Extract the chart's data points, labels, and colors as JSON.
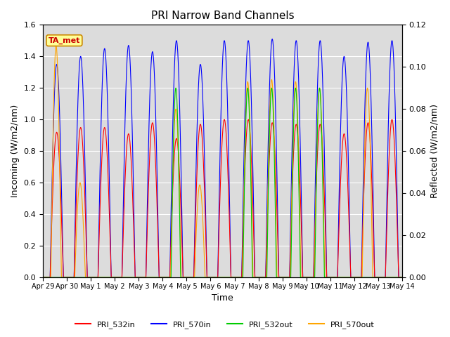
{
  "title": "PRI Narrow Band Channels",
  "xlabel": "Time",
  "ylabel_left": "Incoming (W/m2/nm)",
  "ylabel_right": "Reflected (W/m2/nm)",
  "ylim_left": [
    0,
    1.6
  ],
  "ylim_right": [
    0,
    0.12
  ],
  "annotation": "TA_met",
  "background_color": "#dcdcdc",
  "series": {
    "PRI_532in": {
      "color": "#ff0000"
    },
    "PRI_570in": {
      "color": "#0000ff"
    },
    "PRI_532out": {
      "color": "#00cc00"
    },
    "PRI_570out": {
      "color": "#ffa500"
    }
  },
  "xtick_labels": [
    "Apr 29",
    "Apr 30",
    "May 1",
    "May 2",
    "May 3",
    "May 4",
    "May 5",
    "May 6",
    "May 7",
    "May 8",
    "May 9",
    "May 10",
    "May 11",
    "May 12",
    "May 13",
    "May 14"
  ],
  "num_days": 15,
  "in532_peaks": [
    0.92,
    0.95,
    0.95,
    0.91,
    0.98,
    0.88,
    0.97,
    1.0,
    1.0,
    0.98,
    0.97,
    0.97,
    0.91,
    0.98,
    1.0
  ],
  "in570_peaks": [
    1.35,
    1.4,
    1.45,
    1.47,
    1.43,
    1.5,
    1.35,
    1.5,
    1.5,
    1.51,
    1.5,
    1.5,
    1.4,
    1.49,
    1.5
  ],
  "out532_peaks": [
    0.0,
    0.0,
    0.0,
    0.0,
    0.0,
    0.09,
    0.0,
    0.0,
    0.09,
    0.09,
    0.09,
    0.09,
    0.0,
    0.0,
    0.0
  ],
  "out570_peaks": [
    0.11,
    0.045,
    0.0,
    0.0,
    0.0,
    0.08,
    0.044,
    0.0,
    0.093,
    0.094,
    0.093,
    0.09,
    0.0,
    0.09,
    0.0
  ],
  "day_start": 0.3,
  "day_end": 0.85,
  "pts_per_day": 500,
  "figsize": [
    6.4,
    4.8
  ],
  "dpi": 100
}
